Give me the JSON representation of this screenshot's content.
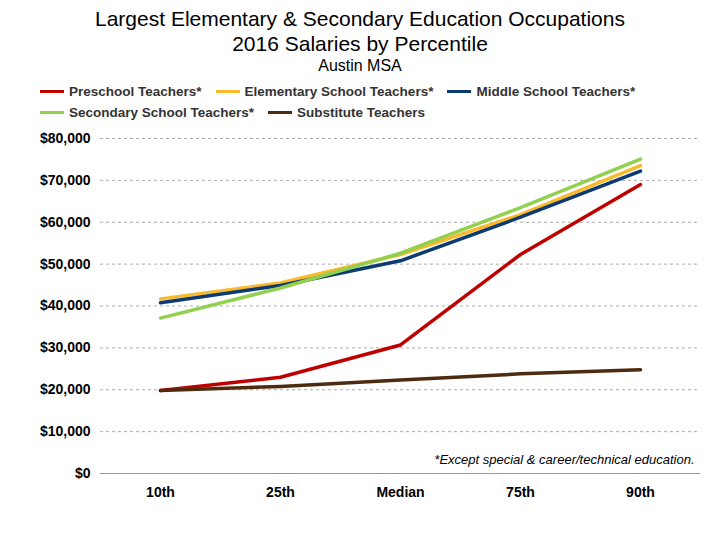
{
  "chart_data": {
    "type": "line",
    "title": "Largest Elementary & Secondary Education Occupations",
    "subtitle": [
      "2016 Salaries by Percentile",
      "Austin MSA"
    ],
    "annotation": "*Except special & career/technical education.",
    "categories": [
      "10th",
      "25th",
      "Median",
      "75th",
      "90th"
    ],
    "series": [
      {
        "name": "Preschool Teachers*",
        "color": "#c00000",
        "values": [
          19800,
          23000,
          30700,
          52300,
          69000
        ]
      },
      {
        "name": "Elementary School Teachers*",
        "color": "#f9b92a",
        "values": [
          41700,
          45500,
          52300,
          61800,
          73500
        ]
      },
      {
        "name": "Middle School Teachers*",
        "color": "#0d3a73",
        "values": [
          40800,
          44900,
          50800,
          61200,
          72200
        ]
      },
      {
        "name": "Secondary School Teachers*",
        "color": "#92d050",
        "values": [
          37100,
          44300,
          52600,
          63500,
          75100
        ]
      },
      {
        "name": "Substitute Teachers",
        "color": "#4e2a0e",
        "values": [
          19800,
          20800,
          22300,
          23800,
          24800
        ]
      }
    ],
    "ylim": [
      0,
      80000
    ],
    "yticks": [
      {
        "value": 0,
        "label": "$0"
      },
      {
        "value": 10000,
        "label": "$10,000"
      },
      {
        "value": 20000,
        "label": "$20,000"
      },
      {
        "value": 30000,
        "label": "$30,000"
      },
      {
        "value": 40000,
        "label": "$40,000"
      },
      {
        "value": 50000,
        "label": "$50,000"
      },
      {
        "value": 60000,
        "label": "$60,000"
      },
      {
        "value": 70000,
        "label": "$70,000"
      },
      {
        "value": 80000,
        "label": "$80,000"
      }
    ],
    "grid": true,
    "legend": "top"
  }
}
